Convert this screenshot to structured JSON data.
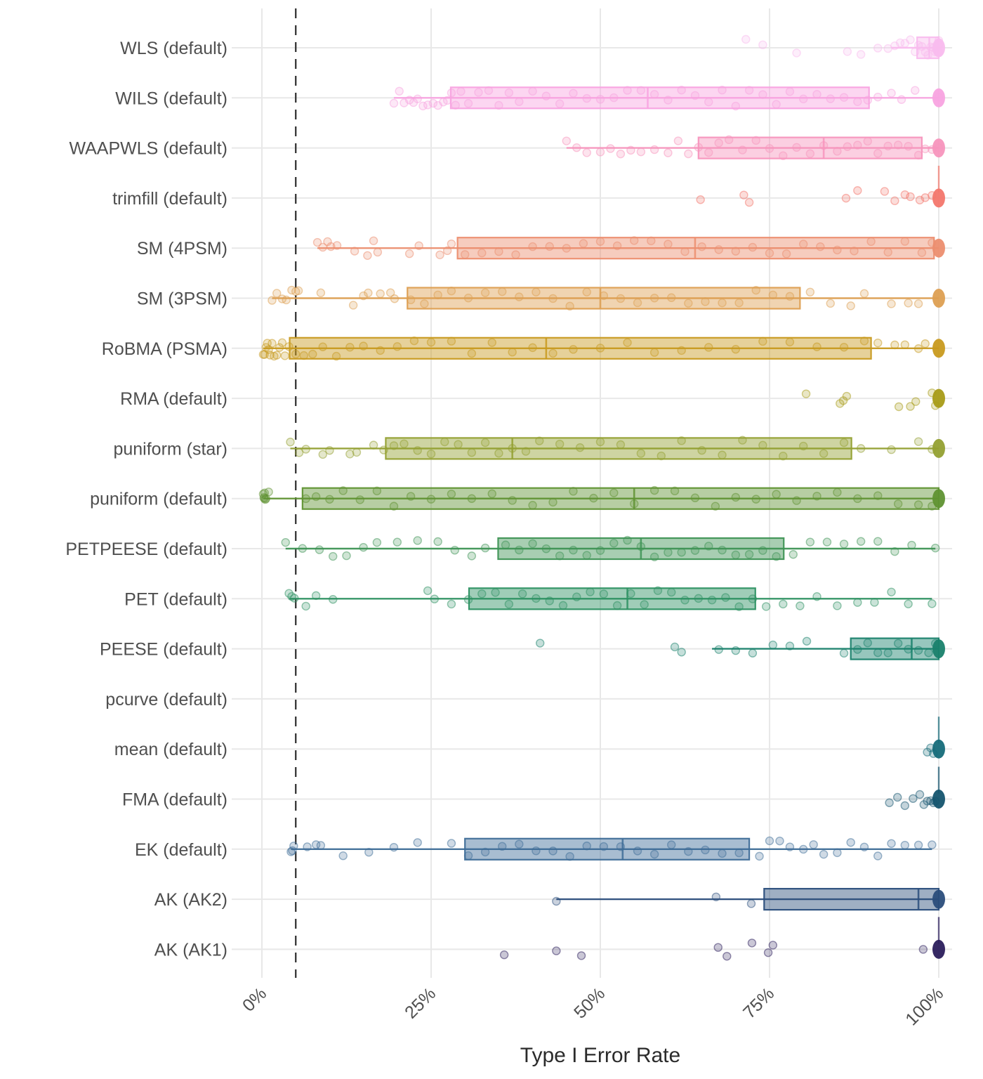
{
  "figure": {
    "xlabel": "Type I Error Rate",
    "background": "#ffffff",
    "gridline_color": "#e8e8e8",
    "tick_text_color": "#4f4f4f",
    "title_text_color": "#2b2b2b",
    "reference_line": {
      "value_pct": 5,
      "style": "dashed",
      "color": "#3c3c3c"
    }
  },
  "chart_data": {
    "type": "boxplot-jitter",
    "orientation": "horizontal",
    "title": "",
    "xlabel": "Type I Error Rate",
    "ylabel": "",
    "x_axis": {
      "label": "Type I Error Rate",
      "range_pct": [
        0,
        100
      ],
      "ticks_pct": [
        0,
        25,
        50,
        75,
        100
      ],
      "tick_labels": [
        "0%",
        "25%",
        "50%",
        "75%",
        "100%"
      ],
      "tick_rotation_deg": 45
    },
    "reference_line_pct": 5,
    "grid": "on",
    "legend": "none",
    "rows": [
      {
        "label": "WLS (default)",
        "color": "#f9bcee",
        "box": {
          "lo": 93,
          "q1": 96.8,
          "med": 98.6,
          "q3": 100,
          "hi": 100
        },
        "points": [
          71.5,
          74,
          79,
          86.5,
          88.5,
          91,
          92.5,
          93.5,
          94.3,
          95,
          95.8,
          96.5,
          97,
          97.5,
          98,
          98.4,
          98.8,
          99.2,
          99.5,
          99.8,
          100,
          100,
          100,
          100
        ],
        "blob100": true,
        "spike100": false
      },
      {
        "label": "WILS (default)",
        "color": "#f8a3e0",
        "box": {
          "lo": 19.5,
          "q1": 27.9,
          "med": 57,
          "q3": 89.7,
          "hi": 100
        },
        "points": [
          19.5,
          20.3,
          21,
          21.8,
          22.4,
          23,
          23.8,
          24.5,
          25.3,
          26,
          26.8,
          27.4,
          28,
          28.6,
          29.4,
          30.5,
          32,
          33.5,
          35,
          36.5,
          38,
          40,
          42,
          44,
          46,
          48,
          50,
          52,
          54,
          56,
          58,
          60,
          62,
          64,
          66,
          68,
          70,
          72,
          74,
          76,
          78,
          80,
          82,
          84,
          86,
          88,
          89.5,
          91,
          93,
          94.5,
          96.5,
          100
        ],
        "blob100": true,
        "spike100": false
      },
      {
        "label": "WAAPWLS (default)",
        "color": "#f795bd",
        "box": {
          "lo": 45,
          "q1": 64.5,
          "med": 83,
          "q3": 97.5,
          "hi": 100
        },
        "points": [
          45,
          46.5,
          48,
          50,
          51.5,
          53,
          54.5,
          56,
          58,
          60,
          61.5,
          63,
          64.5,
          66,
          67.5,
          69,
          71,
          73,
          75,
          77,
          79,
          81,
          83,
          85,
          86.5,
          88,
          89.5,
          91,
          92.5,
          94,
          95.5,
          97,
          98,
          99,
          100
        ],
        "blob100": true,
        "spike100": false
      },
      {
        "label": "trimfill (default)",
        "color": "#f3766b",
        "box": null,
        "points": [
          64.8,
          71.2,
          72,
          86.3,
          88,
          92,
          93.5,
          95,
          95.8,
          97.2,
          98,
          99
        ],
        "blob100": true,
        "spike100": true
      },
      {
        "label": "SM (4PSM)",
        "color": "#ec8e6f",
        "box": {
          "lo": 8.2,
          "q1": 28.9,
          "med": 64,
          "q3": 99.3,
          "hi": 100
        },
        "points": [
          8.2,
          9,
          9.7,
          10.2,
          11.1,
          13.7,
          15.6,
          16.5,
          17.1,
          21.8,
          23.2,
          26.3,
          27.4,
          28,
          30,
          32.5,
          35,
          37.5,
          40,
          42.5,
          45,
          47.5,
          50,
          52.5,
          55,
          57.5,
          60,
          62.5,
          65,
          67.5,
          70,
          72.5,
          75,
          77.5,
          80,
          82.5,
          85,
          87.5,
          90,
          92.5,
          95,
          97.5,
          99
        ],
        "blob100": true,
        "spike100": false
      },
      {
        "label": "SM (3PSM)",
        "color": "#dd9f52",
        "box": {
          "lo": 1.5,
          "q1": 21.5,
          "med": 50,
          "q3": 79.5,
          "hi": 100
        },
        "points": [
          1.5,
          2.2,
          3,
          3.6,
          4.4,
          5,
          5.4,
          8.7,
          13.5,
          15,
          15.7,
          17.5,
          19,
          19.6,
          22,
          24,
          26,
          28,
          30.5,
          33,
          35.5,
          38,
          40.5,
          43,
          45.5,
          48,
          50.5,
          53,
          55.5,
          58,
          60.5,
          63,
          65.5,
          68,
          70.5,
          73,
          75.5,
          78,
          81,
          84,
          87,
          89,
          93,
          95.5,
          97
        ],
        "blob100": true,
        "spike100": false
      },
      {
        "label": "RoBMA (PSMA)",
        "color": "#c89a1f",
        "box": {
          "lo": 0.2,
          "q1": 4.1,
          "med": 42,
          "q3": 90,
          "hi": 100
        },
        "points": [
          0.2,
          0.4,
          0.6,
          0.8,
          1,
          1.2,
          1.5,
          1.8,
          2.2,
          2.6,
          3,
          3.4,
          4,
          5,
          6.2,
          7.5,
          9,
          11,
          13,
          15,
          17.5,
          20,
          22.5,
          25,
          28,
          31,
          34,
          37,
          40,
          43,
          46,
          50,
          54,
          58,
          62,
          66,
          70,
          74,
          78,
          82,
          86,
          89,
          91,
          93.5,
          95,
          97,
          98
        ],
        "blob100": true,
        "spike100": false
      },
      {
        "label": "RMA (default)",
        "color": "#a89b17",
        "box": null,
        "points": [
          80.4,
          85.4,
          85.9,
          86.4,
          94.1,
          95.8,
          96.6,
          99,
          99.5
        ],
        "blob100": true,
        "spike100": false
      },
      {
        "label": "puniform (star)",
        "color": "#93a031",
        "box": {
          "lo": 4.2,
          "q1": 18.3,
          "med": 37,
          "q3": 87.1,
          "hi": 100
        },
        "points": [
          4.2,
          5.5,
          6.5,
          9,
          10,
          13,
          14,
          16.5,
          18,
          19.5,
          21,
          23,
          25,
          27,
          29,
          31,
          33,
          35,
          37,
          39,
          41,
          44,
          47,
          50,
          53,
          56,
          59,
          62,
          65,
          68,
          71,
          74,
          77,
          80,
          83,
          86,
          88.5,
          93,
          97,
          99
        ],
        "blob100": true,
        "spike100": false
      },
      {
        "label": "puniform (default)",
        "color": "#5f9232",
        "box": {
          "lo": 0.2,
          "q1": 6,
          "med": 55,
          "q3": 100,
          "hi": 100
        },
        "points": [
          0.2,
          0.3,
          0.35,
          0.4,
          0.5,
          0.6,
          1,
          6.5,
          8,
          10,
          12,
          14.5,
          17,
          19.5,
          22,
          25,
          28,
          31,
          34,
          37,
          40,
          43,
          46,
          49,
          52,
          55,
          58,
          61,
          64,
          67,
          70,
          73,
          76,
          79,
          82,
          85,
          88,
          91,
          94,
          97,
          99
        ],
        "blob100": true,
        "spike100": false
      },
      {
        "label": "PETPEESE (default)",
        "color": "#3e9355",
        "box": {
          "lo": 3.5,
          "q1": 34.9,
          "med": 56,
          "q3": 77.1,
          "hi": 99.5
        },
        "points": [
          3.5,
          6,
          8.5,
          10.5,
          12.5,
          15,
          17,
          20,
          23,
          26,
          28.5,
          31,
          33,
          36,
          38,
          40,
          42,
          44,
          46,
          48,
          50,
          52,
          54,
          56,
          58,
          60,
          62,
          64,
          66,
          68,
          70,
          72,
          74,
          76,
          78.5,
          81,
          83.5,
          86,
          88.5,
          91,
          93.5,
          96,
          99.5
        ],
        "blob100": false,
        "spike100": false
      },
      {
        "label": "PET (default)",
        "color": "#2d9162",
        "box": {
          "lo": 4,
          "q1": 30.6,
          "med": 54,
          "q3": 72.9,
          "hi": 99
        },
        "points": [
          4,
          4.4,
          4.8,
          6.5,
          8,
          10.5,
          24.5,
          25.5,
          28,
          30.5,
          32.5,
          34.5,
          36.5,
          38.5,
          40.5,
          42.5,
          44.5,
          46.5,
          48.5,
          50.5,
          52.5,
          54.5,
          56.5,
          58.5,
          60.5,
          62.5,
          64.5,
          66.5,
          68.5,
          70.5,
          72.5,
          74.5,
          77,
          79.5,
          82,
          85,
          88,
          90.5,
          93,
          95.5,
          99
        ],
        "blob100": false,
        "spike100": false
      },
      {
        "label": "PEESE (default)",
        "color": "#19816c",
        "box": {
          "lo": 66.5,
          "q1": 87,
          "med": 96,
          "q3": 100,
          "hi": 100
        },
        "points": [
          41.1,
          61,
          62,
          67.5,
          70,
          72.5,
          75.5,
          78,
          80.5,
          86,
          88,
          89.5,
          91,
          92.5,
          94,
          95.5,
          97,
          98.5,
          99.5
        ],
        "blob100": true,
        "spike100": false
      },
      {
        "label": "pcurve (default)",
        "color": "#157a77",
        "box": null,
        "points": [],
        "blob100": false,
        "spike100": false
      },
      {
        "label": "mean (default)",
        "color": "#156b79",
        "box": null,
        "points": [
          98.3,
          98.8,
          99.2
        ],
        "blob100": true,
        "spike100": true
      },
      {
        "label": "FMA (default)",
        "color": "#14546e",
        "box": null,
        "points": [
          92.7,
          93.9,
          95,
          96.2,
          97.2,
          97.8,
          98.3,
          98.8,
          99.2,
          99.5
        ],
        "blob100": true,
        "spike100": true
      },
      {
        "label": "EK (default)",
        "color": "#3e6d98",
        "box": {
          "lo": 4.3,
          "q1": 30,
          "med": 53.3,
          "q3": 72,
          "hi": 99
        },
        "points": [
          4.3,
          4.5,
          4.7,
          6.7,
          8,
          8.7,
          12,
          15.8,
          19.5,
          23,
          28,
          30.5,
          33,
          35.5,
          38,
          40.5,
          43,
          45.5,
          48,
          50.5,
          53,
          55.5,
          58,
          60.5,
          63,
          65.5,
          68,
          70.5,
          73.5,
          75,
          76.5,
          78,
          80,
          81.5,
          83,
          85,
          87,
          89,
          91,
          93,
          95,
          97,
          99
        ],
        "blob100": false,
        "spike100": false
      },
      {
        "label": "AK (AK2)",
        "color": "#2a4d7b",
        "box": {
          "lo": 43.5,
          "q1": 74.2,
          "med": 97,
          "q3": 100,
          "hi": 100
        },
        "points": [
          43.5,
          67.1,
          72.3
        ],
        "blob100": true,
        "spike100": false
      },
      {
        "label": "AK (AK1)",
        "color": "#2b1e5c",
        "box": null,
        "points": [
          35.8,
          43.5,
          47.2,
          67.4,
          68.7,
          72.4,
          74.8,
          75.5,
          97.7
        ],
        "blob100": true,
        "spike100": true
      }
    ]
  }
}
